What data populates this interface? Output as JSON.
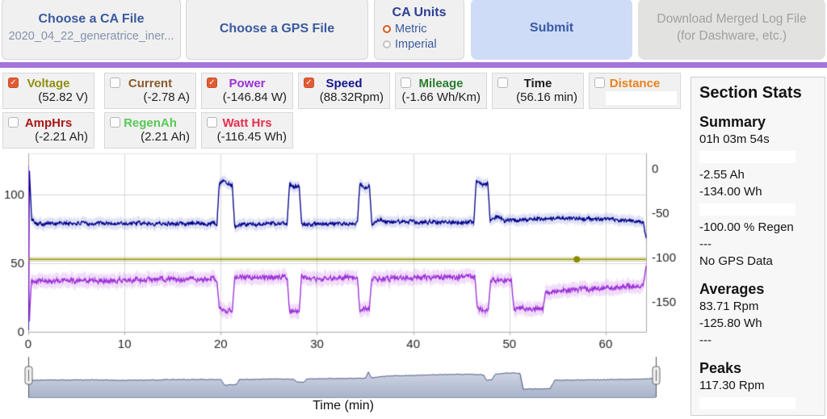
{
  "toolbar": {
    "ca_file": {
      "title": "Choose a CA File",
      "filename": "2020_04_22_generatrice_iner..."
    },
    "gps_file": {
      "title": "Choose a GPS File"
    },
    "ca_units": {
      "title": "CA Units",
      "options": [
        {
          "label": "Metric",
          "selected": true
        },
        {
          "label": "Imperial",
          "selected": false
        }
      ]
    },
    "submit": {
      "label": "Submit"
    },
    "download": {
      "line1": "Download Merged Log File",
      "line2": "(for Dashware, etc.)"
    }
  },
  "metrics": {
    "row1": [
      {
        "label": "Voltage",
        "value": "(52.82 V)",
        "checked": true,
        "color": "#8f8f12"
      },
      {
        "label": "Current",
        "value": "(-2.78 A)",
        "checked": false,
        "color": "#8a5a2a"
      },
      {
        "label": "Power",
        "value": "(-146.84 W)",
        "checked": true,
        "color": "#9b30d9"
      },
      {
        "label": "Speed",
        "value": "(88.32Rpm)",
        "checked": true,
        "color": "#14148c"
      },
      {
        "label": "Mileage",
        "value": "(-1.66 Wh/Km)",
        "checked": false,
        "color": "#2a7d2e"
      },
      {
        "label": "Time",
        "value": "(56.16 min)",
        "checked": false,
        "color": "#1d1d1d"
      },
      {
        "label": "Distance",
        "value": "",
        "checked": false,
        "color": "#e8821e"
      }
    ],
    "row2": [
      {
        "label": "AmpHrs",
        "value": "(-2.21 Ah)",
        "checked": false,
        "color": "#a81616"
      },
      {
        "label": "RegenAh",
        "value": "(2.21 Ah)",
        "checked": false,
        "color": "#57c957"
      },
      {
        "label": "Watt Hrs",
        "value": "(-116.45 Wh)",
        "checked": false,
        "color": "#e62e4e"
      }
    ]
  },
  "sidebar": {
    "title": "Section Stats",
    "sections": [
      {
        "heading": "Summary",
        "lines": [
          "01h 03m 54s",
          "",
          "-2.55 Ah",
          "-134.00 Wh",
          "",
          "-100.00 % Regen",
          "---",
          "No GPS Data"
        ]
      },
      {
        "heading": "Averages",
        "lines": [
          "83.71 Rpm",
          "-125.80 Wh",
          "---"
        ]
      },
      {
        "heading": "Peaks",
        "lines": [
          "117.30 Rpm",
          ""
        ]
      }
    ]
  },
  "chart_data": {
    "type": "line",
    "title": "",
    "xlabel": "Time (min)",
    "x_range": [
      0,
      64.2
    ],
    "x_ticks": [
      0,
      10,
      20,
      30,
      40,
      50,
      60
    ],
    "left_axis": {
      "range": [
        0,
        130
      ],
      "ticks": [
        0,
        50,
        100
      ]
    },
    "right_axis": {
      "range": [
        -184,
        17
      ],
      "ticks": [
        0,
        -50,
        -100,
        -150
      ]
    },
    "grid": true,
    "legend": "none",
    "series": [
      {
        "name": "Speed",
        "unit": "Rpm",
        "axis": "left",
        "color": "#00008b",
        "band_color": "rgba(55,70,190,0.16)",
        "jitter": 1.6,
        "points": [
          [
            0,
            2
          ],
          [
            0.12,
            117
          ],
          [
            0.35,
            82
          ],
          [
            1,
            79
          ],
          [
            19.6,
            79
          ],
          [
            19.85,
            108
          ],
          [
            20.3,
            110
          ],
          [
            21.2,
            107
          ],
          [
            21.45,
            77
          ],
          [
            22,
            78
          ],
          [
            26.9,
            79
          ],
          [
            27.15,
            108
          ],
          [
            27.6,
            105
          ],
          [
            28.15,
            107
          ],
          [
            28.4,
            78
          ],
          [
            34.2,
            79
          ],
          [
            34.45,
            107
          ],
          [
            35.0,
            105
          ],
          [
            35.45,
            106
          ],
          [
            35.7,
            79
          ],
          [
            36.5,
            82
          ],
          [
            37,
            80
          ],
          [
            46.3,
            80
          ],
          [
            46.55,
            109
          ],
          [
            47.2,
            107
          ],
          [
            47.75,
            108
          ],
          [
            48.0,
            80
          ],
          [
            48.6,
            84
          ],
          [
            49.5,
            81
          ],
          [
            55,
            83
          ],
          [
            60,
            82
          ],
          [
            63.9,
            80
          ],
          [
            64.2,
            68
          ]
        ]
      },
      {
        "name": "Power",
        "unit": "W",
        "axis": "right",
        "color": "#9b30d9",
        "band_color": "rgba(175,60,220,0.18)",
        "jitter": 3.2,
        "points": [
          [
            0,
            5
          ],
          [
            0.1,
            -178
          ],
          [
            0.32,
            -127
          ],
          [
            19.6,
            -124
          ],
          [
            19.85,
            -158
          ],
          [
            21.2,
            -160
          ],
          [
            21.45,
            -122
          ],
          [
            26.9,
            -123
          ],
          [
            27.15,
            -162
          ],
          [
            28.15,
            -160
          ],
          [
            28.4,
            -122
          ],
          [
            29,
            -125
          ],
          [
            34.2,
            -122
          ],
          [
            34.45,
            -160
          ],
          [
            35.45,
            -158
          ],
          [
            35.7,
            -124
          ],
          [
            46.4,
            -122
          ],
          [
            46.65,
            -158
          ],
          [
            47.8,
            -160
          ],
          [
            48.05,
            -126
          ],
          [
            50.2,
            -125
          ],
          [
            50.45,
            -157
          ],
          [
            53.5,
            -158
          ],
          [
            53.75,
            -140
          ],
          [
            55,
            -138
          ],
          [
            57,
            -136
          ],
          [
            60,
            -135
          ],
          [
            62,
            -133
          ],
          [
            63.9,
            -132
          ],
          [
            64.2,
            -108
          ]
        ]
      },
      {
        "name": "Voltage",
        "unit": "V",
        "axis": "left",
        "color": "#8b8b00",
        "band_color": "rgba(139,139,0,0.45)",
        "jitter": 0,
        "marker_x": 57,
        "points": [
          [
            0,
            52.8
          ],
          [
            64.2,
            52.8
          ]
        ]
      }
    ],
    "navigator": {
      "color": "#2e3c6e",
      "fill_top": "#dde2ec",
      "fill_bottom": "#a9b3cb",
      "points": [
        [
          0,
          0.5
        ],
        [
          5,
          0.51
        ],
        [
          10,
          0.5
        ],
        [
          15,
          0.52
        ],
        [
          19.7,
          0.52
        ],
        [
          20.1,
          0.36
        ],
        [
          21.3,
          0.37
        ],
        [
          21.6,
          0.52
        ],
        [
          25,
          0.54
        ],
        [
          27.2,
          0.53
        ],
        [
          27.5,
          0.44
        ],
        [
          28.2,
          0.45
        ],
        [
          28.5,
          0.54
        ],
        [
          31,
          0.55
        ],
        [
          34.5,
          0.56
        ],
        [
          34.8,
          0.74
        ],
        [
          35.1,
          0.57
        ],
        [
          36.5,
          0.62
        ],
        [
          40,
          0.65
        ],
        [
          43,
          0.67
        ],
        [
          45.5,
          0.68
        ],
        [
          46.6,
          0.65
        ],
        [
          46.9,
          0.5
        ],
        [
          47.4,
          0.52
        ],
        [
          47.8,
          0.68
        ],
        [
          49.2,
          0.72
        ],
        [
          50.3,
          0.7
        ],
        [
          50.65,
          0.24
        ],
        [
          53.4,
          0.25
        ],
        [
          53.85,
          0.5
        ],
        [
          56,
          0.51
        ],
        [
          59,
          0.52
        ],
        [
          62,
          0.53
        ],
        [
          64.2,
          0.55
        ]
      ]
    }
  }
}
